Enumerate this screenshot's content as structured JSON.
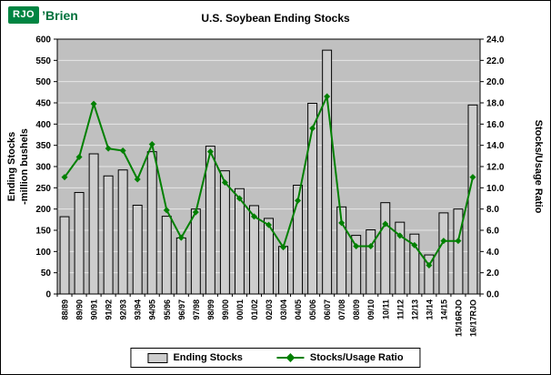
{
  "logo": {
    "abbr": "RJO",
    "rest": "’Brien",
    "brand_green": "#008542"
  },
  "chart_data": {
    "type": "bar",
    "subtype": "bar+line-dual-axis",
    "title": "U.S. Soybean Ending Stocks",
    "categories": [
      "88/89",
      "89/90",
      "90/91",
      "91/92",
      "92/93",
      "93/94",
      "94/95",
      "95/96",
      "96/97",
      "97/98",
      "98/99",
      "99/00",
      "00/01",
      "01/02",
      "02/03",
      "03/04",
      "04/05",
      "05/06",
      "06/07",
      "07/08",
      "08/09",
      "09/10",
      "10/11",
      "11/12",
      "12/13",
      "13/14",
      "14/15",
      "15/16RJO",
      "16/17RJO"
    ],
    "series": [
      {
        "name": "Ending Stocks",
        "type": "bar",
        "axis": "left",
        "values": [
          182,
          239,
          330,
          278,
          292,
          209,
          335,
          183,
          132,
          200,
          348,
          290,
          248,
          208,
          178,
          112,
          256,
          449,
          574,
          205,
          138,
          151,
          215,
          169,
          141,
          92,
          191,
          200,
          445
        ]
      },
      {
        "name": "Stocks/Usage Ratio",
        "type": "line",
        "axis": "right",
        "values": [
          11.0,
          12.9,
          17.9,
          13.7,
          13.5,
          10.8,
          14.1,
          7.9,
          5.3,
          7.7,
          13.4,
          10.5,
          9.0,
          7.3,
          6.5,
          4.4,
          8.8,
          15.6,
          18.6,
          6.7,
          4.5,
          4.5,
          6.6,
          5.5,
          4.6,
          2.7,
          5.0,
          5.0,
          11.0
        ]
      }
    ],
    "left_axis": {
      "label_line1": "Ending Stocks",
      "label_line2": "-million bushels",
      "min": 0,
      "max": 600,
      "step": 50
    },
    "right_axis": {
      "label": "Stocks/Usage Ratio",
      "min": 0,
      "max": 24,
      "step": 2,
      "decimals": 1
    },
    "grid": true,
    "legend_position": "bottom",
    "colors": {
      "bar_fill": "#cdcdcd",
      "bar_border": "#000000",
      "line": "#008000",
      "plot_bg": "#c0c0c0",
      "grid": "#e6e6e6",
      "axis": "#000000"
    }
  }
}
